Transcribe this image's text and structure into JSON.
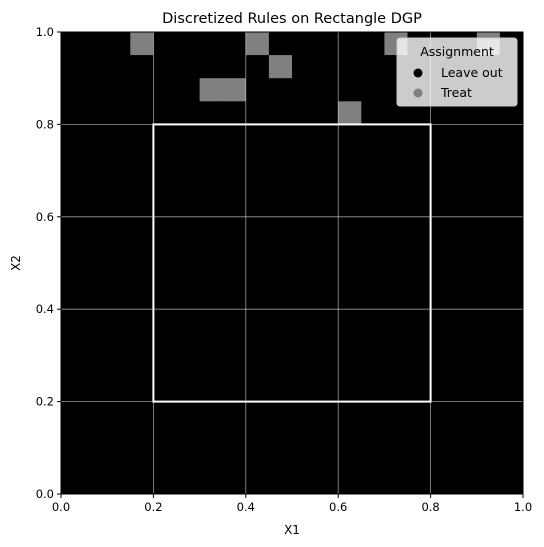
{
  "chart_data": {
    "type": "heatmap",
    "title": "Discretized Rules on Rectangle DGP",
    "xlabel": "X1",
    "ylabel": "X2",
    "xlim": [
      0.0,
      1.0
    ],
    "ylim": [
      0.0,
      1.0
    ],
    "xticks": [
      "0.0",
      "0.2",
      "0.4",
      "0.6",
      "0.8",
      "1.0"
    ],
    "yticks": [
      "0.0",
      "0.2",
      "0.4",
      "0.6",
      "0.8",
      "1.0"
    ],
    "grid": true,
    "legend": {
      "title": "Assignment",
      "placement": "top-right",
      "entries": [
        {
          "label": "Leave out",
          "color": "#000000"
        },
        {
          "label": "Treat",
          "color": "#808080"
        }
      ]
    },
    "rectangle": {
      "x": [
        0.2,
        0.8
      ],
      "y": [
        0.2,
        0.8
      ],
      "color": "#ffffff"
    },
    "grid_size": 20,
    "cell_width": 0.05,
    "rows_top_to_bottom": [
      "00010000100000100010",
      "00000000010000000000",
      "00000011000000000000",
      "00000000000010000000",
      "00000000000000000000",
      "00000000000000000000",
      "00000000000000000000",
      "00000000000000000000",
      "00000000000000000000",
      "00000000000000000000",
      "00000000000000000000",
      "00000000000000000000",
      "00000000000000000000",
      "00000000000000000000",
      "00000000000000000000",
      "00000000000000000000",
      "00000000000000000000",
      "00000000000000000000",
      "00000000000000000000",
      "00000000000000000000"
    ],
    "colors": {
      "leave_out": "#000000",
      "treat": "#808080",
      "rectangle": "#ffffff",
      "grid": "#ffffff"
    }
  }
}
